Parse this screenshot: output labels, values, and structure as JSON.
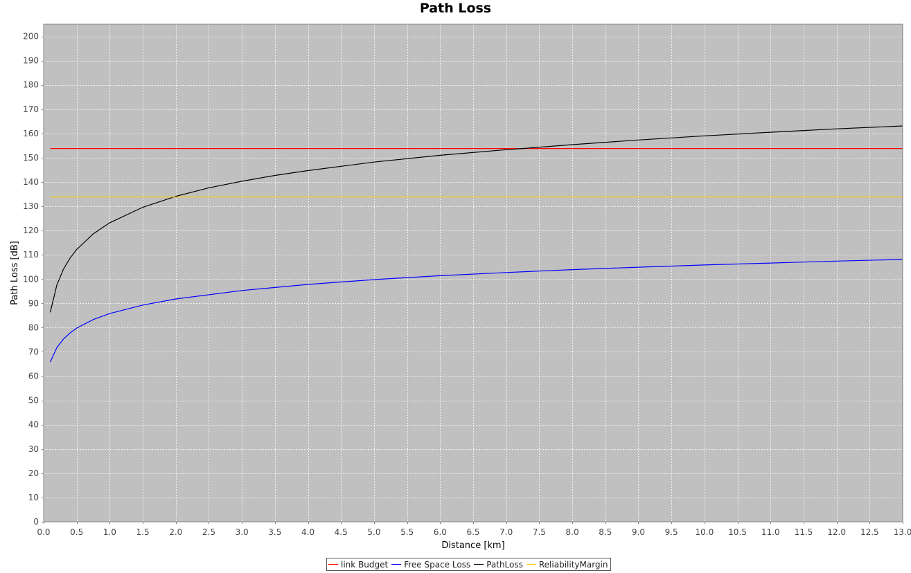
{
  "chart_data": {
    "type": "line",
    "title": "Path Loss",
    "xlabel": "Distance [km]",
    "ylabel": "Path Loss [dB]",
    "xlim": [
      0.0,
      13.0
    ],
    "ylim": [
      0,
      205
    ],
    "xticks": [
      "0.0",
      "0.5",
      "1.0",
      "1.5",
      "2.0",
      "2.5",
      "3.0",
      "3.5",
      "4.0",
      "4.5",
      "5.0",
      "5.5",
      "6.0",
      "6.5",
      "7.0",
      "7.5",
      "8.0",
      "8.5",
      "9.0",
      "9.5",
      "10.0",
      "10.5",
      "11.0",
      "11.5",
      "12.0",
      "12.5",
      "13.0"
    ],
    "yticks": [
      "0",
      "10",
      "20",
      "30",
      "40",
      "50",
      "60",
      "70",
      "80",
      "90",
      "100",
      "110",
      "120",
      "130",
      "140",
      "150",
      "160",
      "170",
      "180",
      "190",
      "200"
    ],
    "grid": true,
    "background": "#c0c0c0",
    "legend_position": "bottom-center",
    "series": [
      {
        "name": "link Budget",
        "color": "#ff0000",
        "x": [
          0.1,
          13.0
        ],
        "y": [
          153.8,
          153.8
        ]
      },
      {
        "name": "Free Space Loss",
        "color": "#0000ff",
        "x": [
          0.1,
          0.2,
          0.3,
          0.4,
          0.5,
          0.75,
          1.0,
          1.5,
          2.0,
          3.0,
          4.0,
          5.0,
          6.0,
          7.0,
          8.0,
          9.0,
          10.0,
          11.0,
          12.0,
          13.0
        ],
        "y": [
          65.8,
          71.8,
          75.3,
          77.8,
          79.8,
          83.3,
          85.8,
          89.3,
          91.8,
          95.3,
          97.8,
          99.8,
          101.4,
          102.7,
          103.9,
          104.9,
          105.8,
          106.6,
          107.4,
          108.1
        ]
      },
      {
        "name": "PathLoss",
        "color": "#000000",
        "x": [
          0.1,
          0.2,
          0.3,
          0.4,
          0.5,
          0.75,
          1.0,
          1.5,
          2.0,
          2.5,
          3.0,
          3.5,
          4.0,
          5.0,
          6.0,
          7.0,
          7.25,
          8.0,
          9.0,
          10.0,
          11.0,
          12.0,
          13.0
        ],
        "y": [
          86.3,
          97.6,
          104.1,
          108.7,
          112.2,
          118.6,
          123.2,
          129.6,
          134.1,
          137.6,
          140.3,
          142.7,
          144.7,
          148.2,
          151.0,
          153.3,
          153.8,
          155.4,
          157.3,
          159.0,
          160.5,
          161.9,
          163.1
        ]
      },
      {
        "name": "ReliabilityMargin",
        "color": "#ffcc00",
        "x": [
          0.1,
          13.0
        ],
        "y": [
          133.8,
          133.8
        ]
      }
    ]
  },
  "legend": {
    "items": [
      {
        "label": "link Budget",
        "color": "#ff0000"
      },
      {
        "label": "Free Space Loss",
        "color": "#0000ff"
      },
      {
        "label": "PathLoss",
        "color": "#000000"
      },
      {
        "label": "ReliabilityMargin",
        "color": "#ffcc00"
      }
    ]
  }
}
